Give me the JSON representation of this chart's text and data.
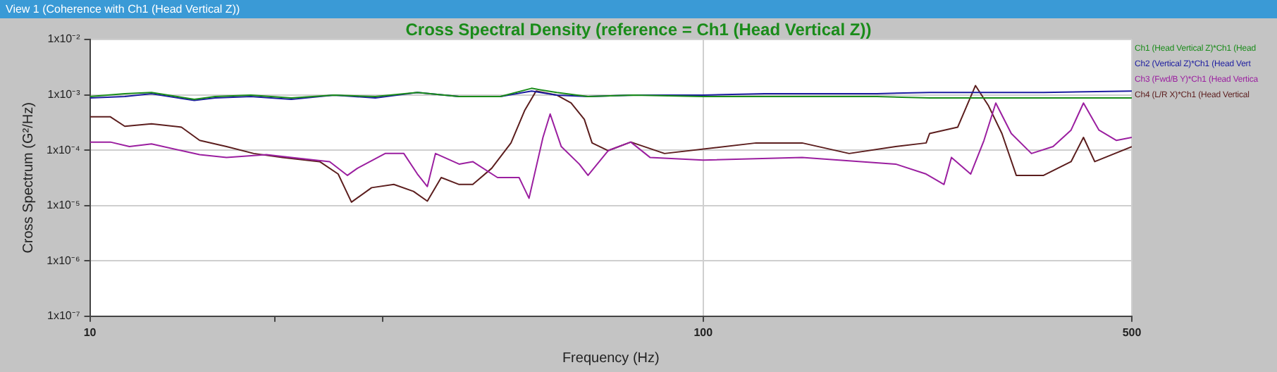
{
  "chart_data": {
    "type": "line",
    "title": "Cross Spectral Density (reference = Ch1 (Head Vertical Z))",
    "annotations": [
      "View 1 (Coherence with Ch1 (Head Vertical Z))"
    ],
    "xlabel": "Frequency (Hz)",
    "ylabel": "Cross Spectrum (G²/Hz)",
    "log": "xy",
    "grid": true,
    "legend": "right",
    "line_style": "solid",
    "marker": "none",
    "xlim": [
      10,
      500
    ],
    "xticks": [
      10,
      {
        "value": 20,
        "label": null
      },
      {
        "value": 30,
        "label": null
      },
      100,
      500
    ],
    "ylim": [
      1e-07,
      0.01
    ],
    "yticks": [
      {
        "value": 1e-07,
        "label": "1x10⁻⁷"
      },
      {
        "value": 1e-06,
        "label": "1x10⁻⁶"
      },
      {
        "value": 1e-05,
        "label": "1x10⁻⁵"
      },
      {
        "value": 0.0001,
        "label": "1x10⁻⁴"
      },
      {
        "value": 0.001,
        "label": "1x10⁻³"
      },
      {
        "value": 0.01,
        "label": "1x10⁻²"
      }
    ],
    "series": [
      {
        "name": "Ch1 (Head Vertical Z)*Ch1 (Head",
        "color": "#1a8c1a",
        "x": [
          10,
          11.4,
          12.6,
          14.8,
          16.0,
          18.3,
          21.3,
          25.0,
          29.2,
          34.2,
          40.0,
          46.7,
          52.5,
          57.7,
          64.9,
          76.9,
          100,
          126,
          156,
          192,
          234,
          292,
          359,
          500
        ],
        "values": [
          0.00093,
          0.00105,
          0.0011,
          0.00083,
          0.00093,
          0.00099,
          0.00088,
          0.00099,
          0.00093,
          0.0011,
          0.00093,
          0.00093,
          0.00131,
          0.0011,
          0.00093,
          0.00099,
          0.00093,
          0.00093,
          0.00093,
          0.00093,
          0.00088,
          0.00088,
          0.00088,
          0.00088
        ]
      },
      {
        "name": "Ch2 (Vertical Z)*Ch1 (Head Vert",
        "color": "#1c1ca0",
        "x": [
          10,
          11.4,
          12.6,
          14.8,
          16.0,
          18.3,
          21.3,
          25.0,
          29.2,
          34.2,
          40.0,
          46.7,
          52.5,
          57.7,
          64.9,
          76.9,
          100,
          126,
          156,
          192,
          234,
          292,
          359,
          500
        ],
        "values": [
          0.00088,
          0.00093,
          0.00105,
          0.00079,
          0.00088,
          0.00093,
          0.00083,
          0.00099,
          0.00088,
          0.0011,
          0.00093,
          0.00093,
          0.00117,
          0.00099,
          0.00093,
          0.00099,
          0.00099,
          0.00105,
          0.00105,
          0.00105,
          0.0011,
          0.0011,
          0.0011,
          0.00117
        ]
      },
      {
        "name": "Ch3 (Fwd/B Y)*Ch1 (Head Vertica",
        "color": "#9b1fa0",
        "x": [
          10,
          10.8,
          11.6,
          12.6,
          14.1,
          15.1,
          16.7,
          19.4,
          21.3,
          24.6,
          26.3,
          27.3,
          30.3,
          32.5,
          34.2,
          35.5,
          36.6,
          40.0,
          42.1,
          46.2,
          50.1,
          52.0,
          54.8,
          56.3,
          58.7,
          62.8,
          64.9,
          70.0,
          76.2,
          81.9,
          100,
          145,
          206,
          231,
          247,
          254,
          273,
          287,
          300,
          318,
          343,
          372,
          398,
          417,
          442,
          472,
          500
        ],
        "values": [
          0.00014,
          0.00014,
          0.000116,
          0.00013,
          9.8e-05,
          8.3e-05,
          7.4e-05,
          8.3e-05,
          7.4e-05,
          6.2e-05,
          3.5e-05,
          4.7e-05,
          8.7e-05,
          8.7e-05,
          3.7e-05,
          2.2e-05,
          8.7e-05,
          5.6e-05,
          6.2e-05,
          3.2e-05,
          3.2e-05,
          1.35e-05,
          0.00017,
          0.00045,
          0.000116,
          5.6e-05,
          3.5e-05,
          9.8e-05,
          0.00014,
          7.4e-05,
          6.6e-05,
          7.4e-05,
          5.6e-05,
          3.7e-05,
          2.4e-05,
          7.4e-05,
          3.7e-05,
          0.00015,
          0.00071,
          0.0002,
          8.7e-05,
          0.000116,
          0.00023,
          0.00071,
          0.00023,
          0.00015,
          0.00017
        ]
      },
      {
        "name": "Ch4 (L/R X)*Ch1 (Head Vertical",
        "color": "#5c1e1e",
        "x": [
          10,
          10.8,
          11.4,
          12.6,
          14.1,
          15.1,
          16.7,
          18.5,
          20.6,
          23.7,
          25.4,
          26.7,
          28.8,
          31.3,
          33.7,
          35.5,
          37.4,
          40.0,
          42.1,
          45.2,
          48.6,
          51.2,
          53.4,
          57.7,
          60.9,
          64.0,
          65.9,
          70.0,
          76.2,
          86.5,
          122,
          145,
          173,
          206,
          231,
          234,
          260,
          278,
          292,
          307,
          324,
          359,
          398,
          417,
          435,
          500
        ],
        "values": [
          0.0004,
          0.0004,
          0.00027,
          0.0003,
          0.00026,
          0.00015,
          0.000116,
          8.7e-05,
          7.4e-05,
          6.2e-05,
          3.7e-05,
          1.15e-05,
          2.1e-05,
          2.4e-05,
          1.8e-05,
          1.2e-05,
          3.2e-05,
          2.4e-05,
          2.4e-05,
          4.7e-05,
          0.000135,
          0.00053,
          0.00117,
          0.00099,
          0.00071,
          0.00036,
          0.000135,
          9.8e-05,
          0.00014,
          8.7e-05,
          0.000135,
          0.000135,
          8.7e-05,
          0.000116,
          0.000135,
          0.0002,
          0.00026,
          0.00147,
          0.00063,
          0.0002,
          3.5e-05,
          3.5e-05,
          6.2e-05,
          0.00017,
          6.2e-05,
          0.000116
        ]
      }
    ]
  }
}
